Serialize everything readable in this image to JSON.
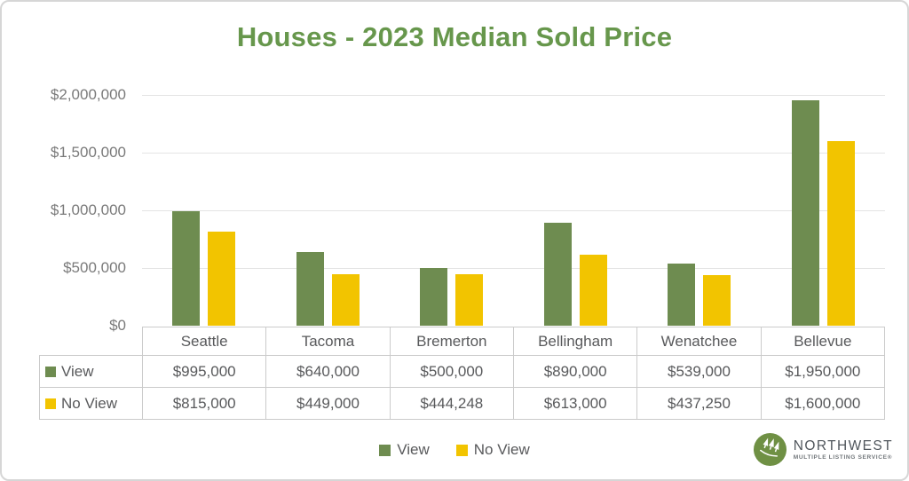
{
  "title": "Houses - 2023 Median Sold Price",
  "chart_data": {
    "type": "bar",
    "title": "Houses - 2023 Median Sold Price",
    "categories": [
      "Seattle",
      "Tacoma",
      "Bremerton",
      "Bellingham",
      "Wenatchee",
      "Bellevue"
    ],
    "series": [
      {
        "name": "View",
        "color": "#6e8c50",
        "values": [
          995000,
          640000,
          500000,
          890000,
          539000,
          1950000
        ],
        "display": [
          "$995,000",
          "$640,000",
          "$500,000",
          "$890,000",
          "$539,000",
          "$1,950,000"
        ]
      },
      {
        "name": "No View",
        "color": "#f2c400",
        "values": [
          815000,
          449000,
          444248,
          613000,
          437250,
          1600000
        ],
        "display": [
          "$815,000",
          "$449,000",
          "$444,248",
          "$613,000",
          "$437,250",
          "$1,600,000"
        ]
      }
    ],
    "ylim": [
      0,
      2000000
    ],
    "y_ticks": [
      {
        "value": 2000000,
        "label": "$2,000,000"
      },
      {
        "value": 1500000,
        "label": "$1,500,000"
      },
      {
        "value": 1000000,
        "label": "$1,000,000"
      },
      {
        "value": 500000,
        "label": "$500,000"
      },
      {
        "value": 0,
        "label": "$0"
      }
    ],
    "grid": true,
    "legend_position": "bottom",
    "data_table_shown": true
  },
  "colors": {
    "title_green": "#67974c",
    "bar_green": "#6e8c50",
    "bar_yellow": "#f2c400",
    "axis_text": "#7a7a7a",
    "table_text": "#58595b",
    "table_border": "#cbcbcb",
    "gridline": "#e4e4e4",
    "logo_green": "#6f9044"
  },
  "logo": {
    "name": "NORTHWEST",
    "tagline": "MULTIPLE LISTING SERVICE®"
  }
}
